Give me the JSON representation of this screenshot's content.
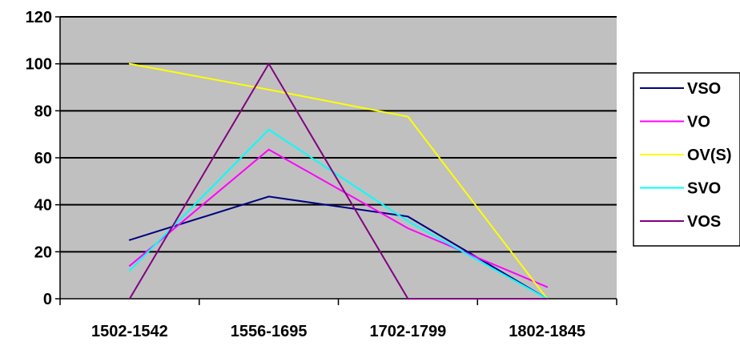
{
  "chart_data": {
    "type": "line",
    "categories": [
      "1502-1542",
      "1556-1695",
      "1702-1799",
      "1802-1845"
    ],
    "ylim": [
      0,
      120
    ],
    "y_ticks": [
      0,
      20,
      40,
      60,
      80,
      100,
      120
    ],
    "grid": true,
    "legend_position": "right",
    "plot_background": "#c0c0c0",
    "series": [
      {
        "name": "VSO",
        "color": "#000080",
        "values": [
          25,
          43.5,
          35,
          0
        ]
      },
      {
        "name": "VO",
        "color": "#ff00ff",
        "values": [
          14,
          63.5,
          30,
          5
        ]
      },
      {
        "name": "OV(S)",
        "color": "#ffff00",
        "values": [
          100,
          89,
          77.5,
          0
        ]
      },
      {
        "name": "SVO",
        "color": "#00ffff",
        "values": [
          12,
          72,
          33,
          0
        ]
      },
      {
        "name": "VOS",
        "color": "#800080",
        "values": [
          0,
          100,
          0,
          0
        ]
      }
    ]
  }
}
